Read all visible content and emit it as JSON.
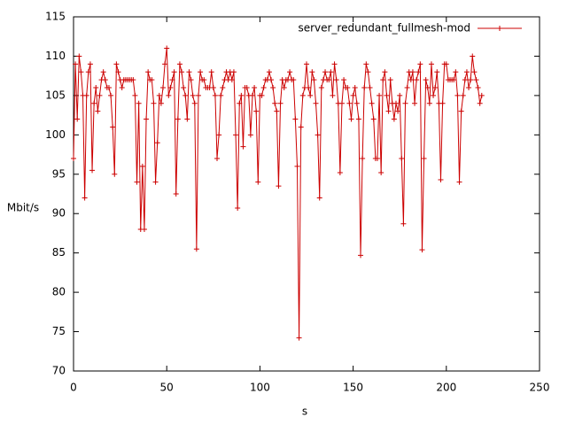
{
  "chart_data": {
    "type": "line",
    "series": [
      {
        "name": "server_redundant_fullmesh-mod",
        "color": "#cc0000",
        "x": [
          0,
          1,
          2,
          3,
          4,
          5,
          6,
          7,
          8,
          9,
          10,
          11,
          12,
          13,
          14,
          15,
          16,
          17,
          18,
          19,
          20,
          21,
          22,
          23,
          24,
          25,
          26,
          27,
          28,
          29,
          30,
          31,
          32,
          33,
          34,
          35,
          36,
          37,
          38,
          39,
          40,
          41,
          42,
          43,
          44,
          45,
          46,
          47,
          48,
          49,
          50,
          51,
          52,
          53,
          54,
          55,
          56,
          57,
          58,
          59,
          60,
          61,
          62,
          63,
          64,
          65,
          66,
          67,
          68,
          69,
          70,
          71,
          72,
          73,
          74,
          75,
          76,
          77,
          78,
          79,
          80,
          81,
          82,
          83,
          84,
          85,
          86,
          87,
          88,
          89,
          90,
          91,
          92,
          93,
          94,
          95,
          96,
          97,
          98,
          99,
          100,
          101,
          102,
          103,
          104,
          105,
          106,
          107,
          108,
          109,
          110,
          111,
          112,
          113,
          114,
          115,
          116,
          117,
          118,
          119,
          120,
          121,
          122,
          123,
          124,
          125,
          126,
          127,
          128,
          129,
          130,
          131,
          132,
          133,
          134,
          135,
          136,
          137,
          138,
          139,
          140,
          141,
          142,
          143,
          144,
          145,
          146,
          147,
          148,
          149,
          150,
          151,
          152,
          153,
          154,
          155,
          156,
          157,
          158,
          159,
          160,
          161,
          162,
          163,
          164,
          165,
          166,
          167,
          168,
          169,
          170,
          171,
          172,
          173,
          174,
          175,
          176,
          177,
          178,
          179,
          180,
          181,
          182,
          183,
          184,
          185,
          186,
          187,
          188,
          189,
          190,
          191,
          192,
          193,
          194,
          195,
          196,
          197,
          198,
          199,
          200,
          201,
          202,
          203,
          204,
          205,
          206,
          207,
          208,
          209,
          210,
          211,
          212,
          213,
          214,
          215,
          216,
          217,
          218,
          219
        ],
        "values": [
          97,
          109,
          102,
          110,
          108,
          105,
          92,
          105,
          108,
          109,
          95.5,
          104,
          106,
          103,
          105,
          107,
          108,
          107,
          106,
          106,
          105,
          101,
          95,
          109,
          108,
          107,
          106,
          107,
          107,
          107,
          107,
          107,
          107,
          105,
          94,
          104,
          88,
          96,
          88,
          102,
          108,
          107,
          107,
          104,
          94,
          99,
          105,
          104,
          106,
          109,
          111,
          105,
          106,
          107,
          108,
          92.5,
          102,
          109,
          108,
          106,
          105,
          102,
          108,
          107,
          105,
          104,
          85.5,
          105,
          108,
          107,
          107,
          106,
          106,
          106,
          108,
          106,
          105,
          97,
          100,
          105,
          106,
          107,
          108,
          107,
          108,
          107,
          108,
          100,
          90.7,
          104,
          105,
          98.5,
          106,
          106,
          105,
          100,
          105,
          106,
          103,
          94,
          105,
          105,
          106,
          107,
          107,
          108,
          107,
          106,
          104,
          103,
          93.5,
          104,
          107,
          106,
          107,
          107,
          108,
          107,
          107,
          102,
          96,
          74.2,
          101,
          105,
          106,
          109,
          106,
          105,
          108,
          107,
          104,
          100,
          92,
          106,
          107,
          108,
          107,
          107,
          108,
          105,
          109,
          107,
          104,
          95.2,
          104,
          107,
          106,
          106,
          104,
          102,
          105,
          106,
          104,
          102,
          84.7,
          97,
          106,
          109,
          108,
          106,
          104,
          102,
          97,
          97,
          105,
          95.2,
          107,
          108,
          105,
          103,
          107,
          104,
          102,
          104,
          103,
          105,
          97,
          88.7,
          104,
          106,
          108,
          107,
          108,
          104,
          107,
          108,
          109,
          85.4,
          97,
          107,
          106,
          104,
          109,
          105,
          106,
          108,
          104,
          94.3,
          104,
          109,
          109,
          107,
          107,
          107,
          107,
          108,
          105,
          94,
          103,
          105,
          107,
          108,
          106,
          107,
          110,
          108,
          107,
          106,
          104,
          105
        ]
      }
    ],
    "x_label": "s",
    "y_label": "Mbit/s",
    "xlim": [
      0,
      250
    ],
    "xticks": [
      0,
      50,
      100,
      150,
      200,
      250
    ],
    "ylim": [
      70,
      115
    ],
    "yticks": [
      70,
      75,
      80,
      85,
      90,
      95,
      100,
      105,
      110,
      115
    ],
    "legend": "top-right"
  }
}
